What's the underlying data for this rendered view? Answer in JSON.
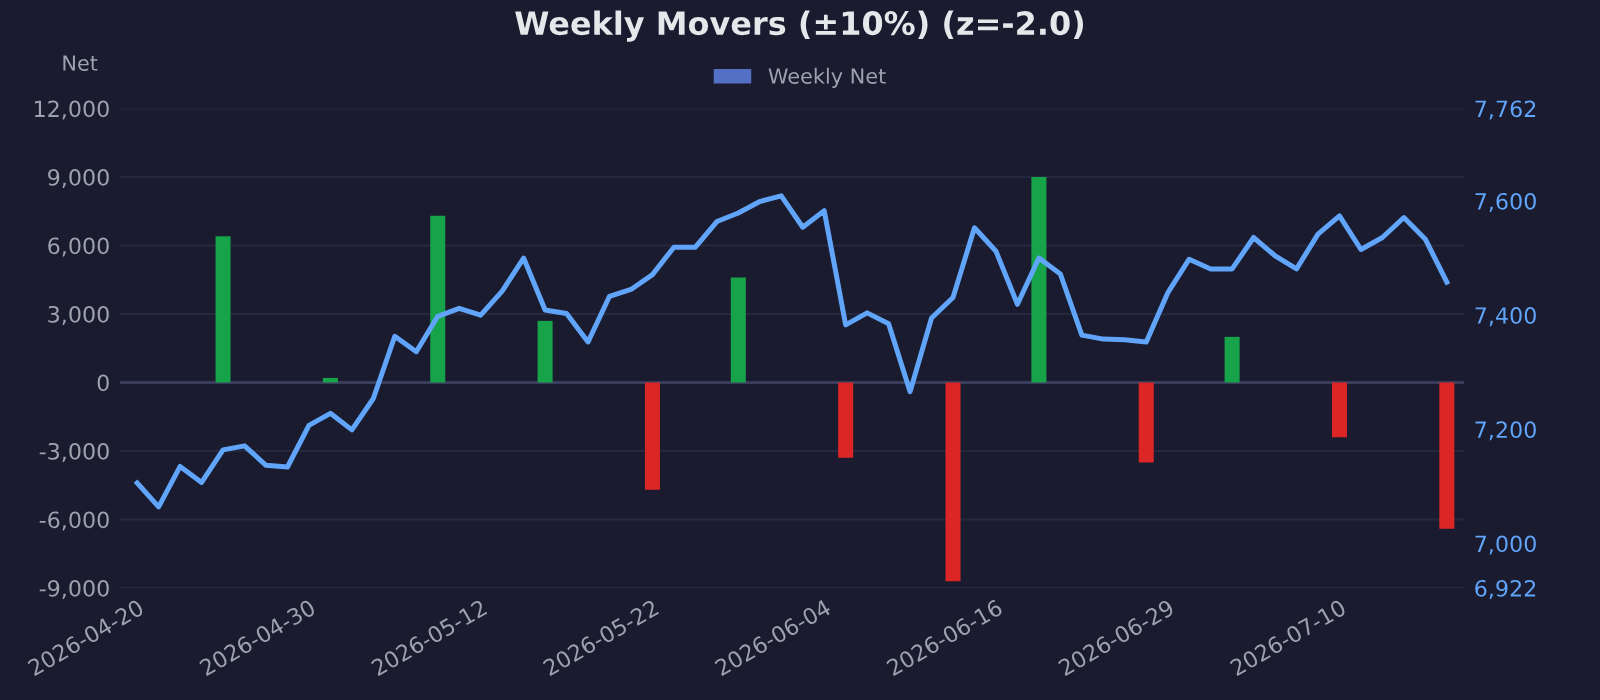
{
  "chart_data": {
    "type": "bar",
    "title": "Weekly Movers (±10%) (z=-2.0)",
    "ylabel": "Net",
    "categories": [
      "2026-04-20",
      null,
      null,
      null,
      null,
      null,
      null,
      null,
      "2026-04-30",
      null,
      null,
      null,
      null,
      null,
      null,
      null,
      "2026-05-12",
      null,
      null,
      null,
      null,
      null,
      null,
      null,
      "2026-05-22",
      null,
      null,
      null,
      null,
      null,
      null,
      null,
      "2026-06-04",
      null,
      null,
      null,
      null,
      null,
      null,
      null,
      "2026-06-16",
      null,
      null,
      null,
      null,
      null,
      null,
      null,
      "2026-06-29",
      null,
      null,
      null,
      null,
      null,
      null,
      null,
      "2026-07-10",
      null,
      null,
      null,
      null,
      null
    ],
    "series": [
      {
        "name": "Weekly Net",
        "color": "#5470c6",
        "colors": [
          null,
          null,
          null,
          null,
          "#16a34a",
          null,
          null,
          null,
          null,
          "#16a34a",
          null,
          null,
          null,
          null,
          "#16a34a",
          null,
          null,
          null,
          null,
          "#16a34a",
          null,
          null,
          null,
          null,
          "#dc2626",
          null,
          null,
          null,
          "#16a34a",
          null,
          null,
          null,
          null,
          "#dc2626",
          null,
          null,
          null,
          null,
          "#dc2626",
          null,
          null,
          null,
          "#16a34a",
          null,
          null,
          null,
          null,
          "#dc2626",
          null,
          null,
          null,
          "#16a34a",
          null,
          null,
          null,
          null,
          "#dc2626",
          null,
          null,
          null,
          null,
          "#dc2626"
        ],
        "values": [
          null,
          null,
          null,
          null,
          6400,
          null,
          null,
          null,
          null,
          200,
          null,
          null,
          null,
          null,
          7300,
          null,
          null,
          null,
          null,
          2700,
          null,
          null,
          null,
          null,
          -4700,
          null,
          null,
          null,
          4600,
          null,
          null,
          null,
          null,
          -3300,
          null,
          null,
          null,
          null,
          -8700,
          null,
          null,
          null,
          9000,
          null,
          null,
          null,
          null,
          -3500,
          null,
          null,
          null,
          2000,
          null,
          null,
          null,
          null,
          -2400,
          null,
          null,
          null,
          null,
          -6400
        ]
      },
      {
        "type": "line",
        "axis": "y2",
        "color": "#60a5fa",
        "values": [
          7106,
          7064,
          7135,
          7107,
          7164,
          7171,
          7137,
          7134,
          7207,
          7228,
          7199,
          7254,
          7363,
          7336,
          7398,
          7412,
          7400,
          7442,
          7500,
          7409,
          7403,
          7353,
          7433,
          7445,
          7471,
          7519,
          7519,
          7564,
          7579,
          7599,
          7609,
          7554,
          7583,
          7383,
          7404,
          7385,
          7266,
          7395,
          7431,
          7553,
          7512,
          7419,
          7500,
          7472,
          7365,
          7358,
          7357,
          7353,
          7439,
          7498,
          7481,
          7481,
          7536,
          7504,
          7481,
          7542,
          7574,
          7515,
          7536,
          7571,
          7533,
          7458
        ]
      }
    ],
    "ylim": [
      -9000,
      12000
    ],
    "yticks": [
      {
        "value": -9000,
        "label": "-9,000"
      },
      {
        "value": -6000,
        "label": "-6,000"
      },
      {
        "value": -3000,
        "label": "-3,000"
      },
      0,
      {
        "value": 3000,
        "label": "3,000"
      },
      {
        "value": 6000,
        "label": "6,000"
      },
      {
        "value": 9000,
        "label": "9,000"
      },
      {
        "value": 12000,
        "label": "12,000"
      }
    ],
    "y2lim": [
      6922,
      7762
    ],
    "y2ticks": [
      {
        "value": 6922,
        "label": "6,922"
      },
      {
        "value": 7000,
        "label": "7,000"
      },
      {
        "value": 7200,
        "label": "7,200"
      },
      {
        "value": 7400,
        "label": "7,400"
      },
      {
        "value": 7600,
        "label": "7,600"
      },
      {
        "value": 7762,
        "label": "7,762"
      }
    ],
    "grid": "y",
    "legend": "top"
  }
}
